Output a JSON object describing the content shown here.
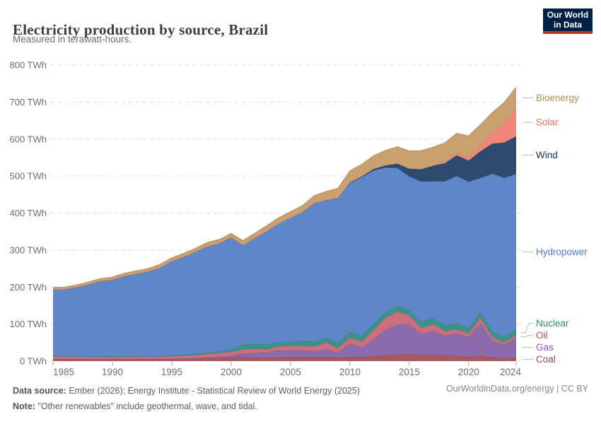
{
  "header": {
    "title": "Electricity production by source, Brazil",
    "subtitle": "Measured in terawatt-hours."
  },
  "logo": {
    "line1": "Our World",
    "line2": "in Data",
    "bg_color": "#002147",
    "accent_color": "#c7302a"
  },
  "chart_data": {
    "type": "area",
    "stacked": true,
    "title": "Electricity production by source, Brazil",
    "unit": "TWh",
    "ylim": [
      0,
      800
    ],
    "grid": "dashed-horizontal",
    "legend_position": "right",
    "y_tick_labels": [
      "0 TWh",
      "100 TWh",
      "200 TWh",
      "300 TWh",
      "400 TWh",
      "500 TWh",
      "600 TWh",
      "700 TWh",
      "800 TWh"
    ],
    "x_tick_values": [
      1985,
      1990,
      1995,
      2000,
      2005,
      2010,
      2015,
      2020,
      2024
    ],
    "x_tick_labels": [
      "1985",
      "1990",
      "1995",
      "2000",
      "2005",
      "2010",
      "2015",
      "2020",
      "2024"
    ],
    "x": [
      1985,
      1986,
      1987,
      1988,
      1989,
      1990,
      1991,
      1992,
      1993,
      1994,
      1995,
      1996,
      1997,
      1998,
      1999,
      2000,
      2001,
      2002,
      2003,
      2004,
      2005,
      2006,
      2007,
      2008,
      2009,
      2010,
      2011,
      2012,
      2013,
      2014,
      2015,
      2016,
      2017,
      2018,
      2019,
      2020,
      2021,
      2022,
      2023,
      2024
    ],
    "series": [
      {
        "id": "coal",
        "name": "Coal",
        "color": "#a85860",
        "label_color": "#a2434e",
        "values": [
          4.5,
          5,
          5,
          4.8,
          4.6,
          4.6,
          4.8,
          4.7,
          4.8,
          5,
          5,
          5.5,
          6,
          7.5,
          8.8,
          9.5,
          10.5,
          9.5,
          9.5,
          10.5,
          10,
          10.5,
          11,
          11,
          9.5,
          11,
          11.5,
          13,
          15.5,
          17.5,
          19,
          17,
          16.5,
          14.5,
          15,
          11,
          15,
          10,
          8,
          9.5
        ]
      },
      {
        "id": "gas",
        "name": "Gas",
        "color": "#8a6bad",
        "label_color": "#8859b6",
        "values": [
          1,
          1,
          1,
          1.1,
          1.2,
          1.2,
          1.3,
          1.3,
          1.4,
          1.4,
          1.3,
          1.5,
          1.8,
          2.2,
          3,
          4.5,
          10,
          13,
          13.5,
          19,
          18.8,
          18,
          16,
          21,
          13,
          37,
          25,
          46,
          69,
          81,
          79.5,
          56.5,
          65.5,
          54.5,
          60.5,
          53.5,
          87,
          44.5,
          36.5,
          52
        ]
      },
      {
        "id": "oil",
        "name": "Oil",
        "color": "#cd6e7d",
        "label_color": "#bd4f61",
        "values": [
          6.5,
          7,
          6,
          5.5,
          5,
          5,
          5.5,
          5.5,
          5.5,
          6,
          7,
          7.5,
          8.5,
          9.5,
          10.5,
          10.5,
          11,
          10.5,
          9,
          10,
          12,
          12.5,
          13,
          18,
          13.5,
          15.5,
          16.5,
          25,
          32,
          35,
          25.5,
          16,
          18,
          12,
          10.5,
          10,
          15,
          10,
          6.5,
          8
        ]
      },
      {
        "id": "nuclear",
        "name": "Nuclear",
        "color": "#3b9387",
        "label_color": "#2a8a7e",
        "values": [
          3.4,
          0.1,
          1,
          0.6,
          1.8,
          2.2,
          1.4,
          1.8,
          0.4,
          0.5,
          2.5,
          2.4,
          3.1,
          3.3,
          4,
          6,
          14.3,
          13.8,
          13.4,
          11.6,
          9.9,
          13.8,
          12.4,
          14,
          13,
          14.5,
          15.7,
          16.1,
          15.5,
          15.5,
          14.7,
          16,
          15.7,
          15.7,
          16.1,
          14.1,
          14.7,
          14.6,
          14.8,
          15
        ]
      },
      {
        "id": "hydropower",
        "name": "Hydropower",
        "color": "#5d87c9",
        "label_color": "#4e7ccc",
        "values": [
          178,
          181,
          187,
          196,
          204,
          207,
          217,
          223,
          230,
          240,
          254,
          265,
          276,
          288,
          292,
          304,
          268,
          286,
          306,
          321,
          337,
          348,
          374,
          370,
          391,
          403,
          428,
          415,
          391,
          373,
          360,
          380,
          370,
          389,
          398,
          396,
          363,
          427,
          429,
          421
        ]
      },
      {
        "id": "wind",
        "name": "Wind",
        "color": "#2d4b6e",
        "label_color": "#132f51",
        "values": [
          0,
          0,
          0,
          0,
          0,
          0,
          0,
          0,
          0,
          0,
          0,
          0,
          0,
          0,
          0,
          0,
          0,
          0,
          0.1,
          0.1,
          0.1,
          0.2,
          0.7,
          1.2,
          1.2,
          2.2,
          2.7,
          5,
          6.6,
          12.2,
          21.6,
          33.5,
          42.4,
          48.5,
          56,
          57.1,
          72.3,
          81.6,
          95.8,
          102
        ]
      },
      {
        "id": "solar",
        "name": "Solar",
        "color": "#f08678",
        "label_color": "#e8705f",
        "values": [
          0,
          0,
          0,
          0,
          0,
          0,
          0,
          0,
          0,
          0,
          0,
          0,
          0,
          0,
          0,
          0,
          0,
          0,
          0,
          0,
          0,
          0,
          0,
          0,
          0,
          0,
          0,
          0,
          0,
          0.1,
          0.1,
          0.1,
          0.8,
          3.5,
          6.7,
          10.7,
          16.8,
          30.1,
          51.4,
          75
        ]
      },
      {
        "id": "bioenergy",
        "name": "Bioenergy",
        "color": "#c9a170",
        "label_color": "#ba8a58",
        "values": [
          5.5,
          5.8,
          6,
          6.2,
          6.5,
          7,
          7.3,
          7.6,
          8,
          8.5,
          9,
          9.3,
          9.6,
          10,
          10.3,
          10.5,
          11.5,
          13,
          14.5,
          15,
          16,
          17,
          20,
          23.5,
          26,
          31,
          32.5,
          35,
          40,
          45,
          47.5,
          49.5,
          49,
          52,
          52.5,
          56,
          55,
          54,
          57,
          58
        ]
      }
    ]
  },
  "footer": {
    "data_source_label": "Data source:",
    "data_source_text": " Ember (2026); Energy Institute - Statistical Review of World Energy (2025)",
    "note_label": "Note:",
    "note_text": " \"Other renewables\" include geothermal, wave, and tidal.",
    "credit": "OurWorldinData.org/energy | CC BY"
  }
}
